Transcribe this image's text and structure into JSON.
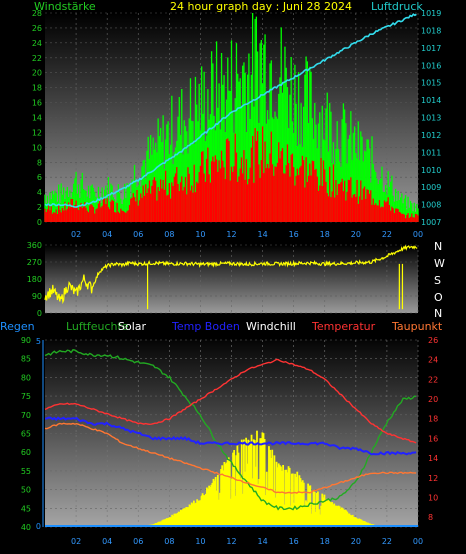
{
  "header": {
    "left_label": "Windstärke",
    "center_title": "24 hour graph day : Juni 28 2024",
    "right_label": "Luftdruck"
  },
  "panel2": {
    "direction_labels": [
      "N",
      "W",
      "S",
      "O",
      "N"
    ]
  },
  "legend": {
    "items": [
      {
        "label": "Regen",
        "color": "#1E90FF"
      },
      {
        "label": "Luftfeuchte",
        "color": "#22AA22"
      },
      {
        "label": "Solar",
        "color": "#FFFFFF"
      },
      {
        "label": "Temp Boden",
        "color": "#2222FF"
      },
      {
        "label": "Windchill",
        "color": "#FFFFFF"
      },
      {
        "label": "Temperatur",
        "color": "#FF3333"
      },
      {
        "label": "Taupunkt",
        "color": "#FF7733"
      }
    ]
  },
  "colors": {
    "gust": "#00FF00",
    "wind": "#FF0000",
    "pressure": "#33DDEE",
    "direction": "#FFFF00",
    "left_axis": "#22CC22",
    "right_axis_pressure": "#22CCCC",
    "right_axis_temp": "#FF3333",
    "x_axis": "#3399FF"
  },
  "chart_data": [
    {
      "type": "line",
      "x_ticks": [
        "02",
        "04",
        "06",
        "08",
        "10",
        "12",
        "14",
        "16",
        "18",
        "20",
        "22",
        "00"
      ],
      "y_left_ticks": [
        "0",
        "2",
        "4",
        "6",
        "8",
        "10",
        "12",
        "14",
        "16",
        "18",
        "20",
        "22",
        "24",
        "26",
        "28"
      ],
      "y_right_ticks": [
        "1007",
        "1008",
        "1009",
        "1010",
        "1011",
        "1012",
        "1013",
        "1014",
        "1015",
        "1016",
        "1017",
        "1018",
        "1019"
      ],
      "ylim": [
        0,
        28
      ],
      "y2lim": [
        1007,
        1019
      ],
      "xlim": [
        0,
        24
      ],
      "series": [
        {
          "axis": "left",
          "color_key": "gust",
          "style": "bars",
          "x": [
            0,
            1,
            2,
            3,
            4,
            5,
            6,
            7,
            8,
            9,
            10,
            11,
            12,
            13,
            14,
            15,
            16,
            17,
            18,
            19,
            20,
            21,
            22,
            23,
            24
          ],
          "values": [
            4,
            4,
            6,
            4,
            5,
            4,
            8,
            10,
            13,
            15,
            17,
            19,
            20,
            22,
            24,
            22,
            19,
            17,
            15,
            13,
            11,
            9,
            6,
            3,
            2
          ]
        },
        {
          "axis": "left",
          "color_key": "wind",
          "style": "bars",
          "x": [
            0,
            1,
            2,
            3,
            4,
            5,
            6,
            7,
            8,
            9,
            10,
            11,
            12,
            13,
            14,
            15,
            16,
            17,
            18,
            19,
            20,
            21,
            22,
            23,
            24
          ],
          "values": [
            2,
            2,
            3,
            2,
            3,
            2,
            4,
            5,
            6,
            7,
            8,
            9,
            10,
            10,
            11,
            10,
            9,
            8,
            7,
            6,
            5,
            4,
            3,
            1,
            1
          ]
        },
        {
          "axis": "right",
          "color_key": "pressure",
          "x": [
            0,
            1,
            2,
            3,
            4,
            5,
            6,
            7,
            8,
            9,
            10,
            11,
            12,
            13,
            14,
            15,
            16,
            17,
            18,
            19,
            20,
            21,
            22,
            23,
            24
          ],
          "values": [
            1008.0,
            1008.0,
            1007.9,
            1008.1,
            1008.5,
            1008.9,
            1009.4,
            1010.0,
            1010.6,
            1011.2,
            1011.9,
            1012.6,
            1013.3,
            1013.8,
            1014.3,
            1014.8,
            1015.3,
            1015.8,
            1016.3,
            1016.8,
            1017.3,
            1017.8,
            1018.2,
            1018.6,
            1019.0
          ]
        }
      ]
    },
    {
      "type": "scatter",
      "y_ticks": [
        "0",
        "90",
        "180",
        "270",
        "360"
      ],
      "ylim": [
        0,
        360
      ],
      "xlim": [
        0,
        24
      ],
      "series": [
        {
          "name": "",
          "color_key": "direction",
          "x": [
            0,
            0.5,
            1,
            1.5,
            2,
            2.5,
            3,
            3.5,
            4,
            4.5,
            5,
            5.5,
            6,
            6.5,
            7,
            8,
            9,
            10,
            11,
            12,
            13,
            14,
            15,
            16,
            17,
            18,
            19,
            20,
            21,
            22,
            22.5,
            23,
            23.5,
            24
          ],
          "values": [
            90,
            120,
            60,
            150,
            100,
            180,
            130,
            220,
            250,
            260,
            255,
            265,
            260,
            262,
            265,
            260,
            262,
            258,
            260,
            262,
            258,
            262,
            260,
            262,
            265,
            260,
            262,
            265,
            270,
            300,
            320,
            340,
            350,
            350
          ]
        }
      ]
    },
    {
      "type": "line",
      "y_left_ticks": [
        "40",
        "45",
        "50",
        "55",
        "60",
        "65",
        "70",
        "75",
        "80",
        "85",
        "90"
      ],
      "y_right_ticks": [
        "8",
        "10",
        "12",
        "14",
        "16",
        "18",
        "20",
        "22",
        "24",
        "26"
      ],
      "y_rain_ticks": [
        "0",
        "5"
      ],
      "ylim": [
        40,
        90
      ],
      "y2lim": [
        7,
        26
      ],
      "xlim": [
        0,
        24
      ],
      "series": [
        {
          "name": "Luftfeuchte",
          "axis": "left",
          "color": "#22AA22",
          "x": [
            0,
            1,
            2,
            3,
            4,
            5,
            6,
            7,
            8,
            9,
            10,
            11,
            12,
            13,
            14,
            15,
            16,
            17,
            18,
            19,
            20,
            21,
            22,
            23,
            24
          ],
          "values": [
            86,
            87,
            87,
            86,
            86,
            85,
            84,
            83,
            80,
            75,
            70,
            63,
            57,
            52,
            47,
            45,
            45,
            46,
            47,
            48,
            52,
            60,
            68,
            74,
            75
          ]
        },
        {
          "name": "Temperatur",
          "axis": "right",
          "color": "#FF3333",
          "x": [
            0,
            1,
            2,
            3,
            4,
            5,
            6,
            7,
            8,
            9,
            10,
            11,
            12,
            13,
            14,
            15,
            16,
            17,
            18,
            19,
            20,
            21,
            22,
            23,
            24
          ],
          "values": [
            19,
            19.5,
            19.5,
            19,
            18.5,
            18,
            17.5,
            17.5,
            18,
            19,
            20,
            21,
            22,
            23,
            23.5,
            24,
            23.5,
            23,
            22,
            20.5,
            19,
            17.5,
            16.5,
            16,
            15.5
          ]
        },
        {
          "name": "Taupunkt",
          "axis": "right",
          "color": "#FF7733",
          "x": [
            0,
            1,
            2,
            3,
            4,
            5,
            6,
            7,
            8,
            9,
            10,
            11,
            12,
            13,
            14,
            15,
            16,
            17,
            18,
            19,
            20,
            21,
            22,
            23,
            24
          ],
          "values": [
            17,
            17.5,
            17.5,
            17,
            16.5,
            15.5,
            15,
            14.5,
            14,
            13.5,
            13,
            12.5,
            12,
            11.5,
            11,
            10.5,
            10.5,
            10.5,
            11,
            11.5,
            12,
            12.5,
            12.5,
            12.5,
            12.5
          ]
        },
        {
          "name": "Temp Boden",
          "axis": "right",
          "color": "#2222FF",
          "x": [
            0,
            1,
            2,
            3,
            4,
            5,
            6,
            7,
            8,
            9,
            10,
            11,
            12,
            13,
            14,
            15,
            16,
            17,
            18,
            19,
            20,
            21,
            22,
            23,
            24
          ],
          "values": [
            18,
            18,
            18,
            17.5,
            17.5,
            17,
            16.5,
            16,
            16,
            16,
            15.5,
            15.5,
            15.5,
            15.5,
            15.5,
            15.5,
            15.5,
            15.5,
            15.5,
            15,
            15,
            14.5,
            14.5,
            14.5,
            14.5
          ]
        },
        {
          "name": "Solar",
          "axis": "right",
          "color": "#FFFF00",
          "style": "area",
          "x": [
            0,
            6,
            7,
            8,
            9,
            10,
            11,
            12,
            13,
            14,
            15,
            16,
            17,
            18,
            19,
            20,
            21,
            24
          ],
          "values": [
            7,
            7,
            7.3,
            8,
            9,
            10,
            12,
            14,
            16,
            16,
            13,
            12.5,
            11,
            10,
            9,
            8,
            7.3,
            7
          ]
        }
      ]
    }
  ]
}
